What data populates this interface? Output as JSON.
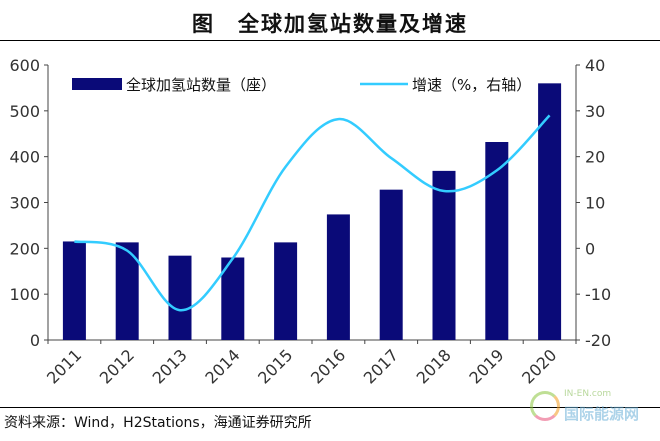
{
  "title": "图　全球加氢站数量及增速",
  "source": "资料来源：Wind，H2Stations，海通证券研究所",
  "watermark": {
    "line1": "IN-EN.com",
    "line2": "国际能源网"
  },
  "colors": {
    "bar": "#0a0a78",
    "line": "#33ccff"
  },
  "chart_data": {
    "type": "bar",
    "categories": [
      "2011",
      "2012",
      "2013",
      "2014",
      "2015",
      "2016",
      "2017",
      "2018",
      "2019",
      "2020"
    ],
    "series": [
      {
        "name": "全球加氢站数量（座）",
        "type": "bar",
        "axis": "left",
        "values": [
          215,
          213,
          184,
          180,
          213,
          274,
          328,
          369,
          432,
          560
        ]
      },
      {
        "name": "增速（%，右轴）",
        "type": "line",
        "axis": "right",
        "values": [
          1.5,
          -0.5,
          -13.5,
          -2.2,
          17.8,
          28.2,
          19.7,
          12.5,
          17.0,
          29.0
        ]
      }
    ],
    "y_left": {
      "min": 0,
      "max": 600,
      "ticks": [
        "0",
        "100",
        "200",
        "300",
        "400",
        "500",
        "600"
      ]
    },
    "y_right": {
      "min": -20,
      "max": 40,
      "ticks": [
        "-20",
        "-10",
        "0",
        "10",
        "20",
        "30",
        "40"
      ]
    },
    "legend_position": "top",
    "grid": false
  }
}
